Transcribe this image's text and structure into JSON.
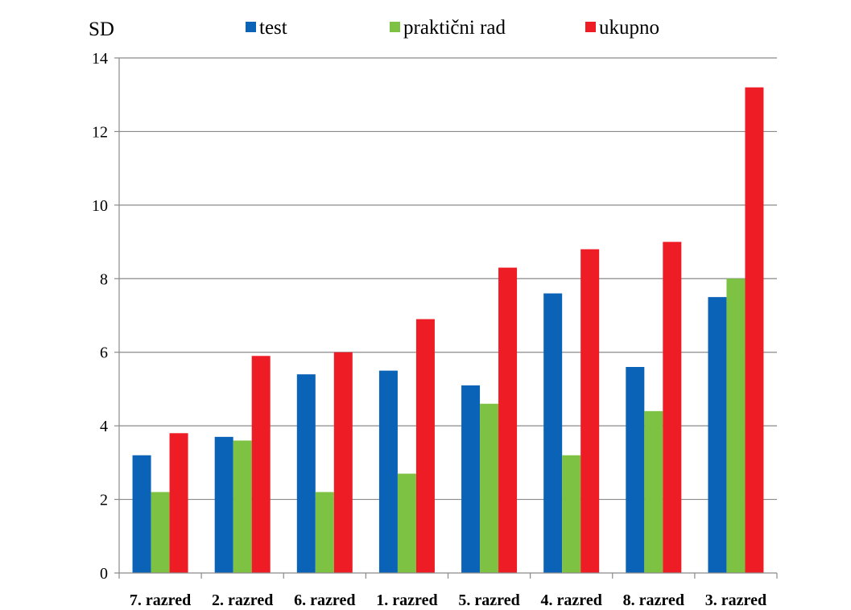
{
  "chart_data": {
    "type": "bar",
    "title": "",
    "xlabel": "",
    "ylabel": "SD",
    "ylim": [
      0,
      14
    ],
    "yticks": [
      0,
      2,
      4,
      6,
      8,
      10,
      12,
      14
    ],
    "grid": true,
    "legend_position": "top",
    "categories": [
      "7. razred",
      "2. razred",
      "6. razred",
      "1. razred",
      "5. razred",
      "4. razred",
      "8. razred",
      "3. razred"
    ],
    "series": [
      {
        "name": "test",
        "color": "#0B63B8",
        "values": [
          3.2,
          3.7,
          5.4,
          5.5,
          5.1,
          7.6,
          5.6,
          7.5
        ]
      },
      {
        "name": "praktični rad",
        "color": "#7DC242",
        "values": [
          2.2,
          3.6,
          2.2,
          2.7,
          4.6,
          3.2,
          4.4,
          8.0
        ]
      },
      {
        "name": "ukupno",
        "color": "#EE1C24",
        "values": [
          3.8,
          5.9,
          6.0,
          6.9,
          8.3,
          8.8,
          9.0,
          13.2
        ]
      }
    ]
  }
}
